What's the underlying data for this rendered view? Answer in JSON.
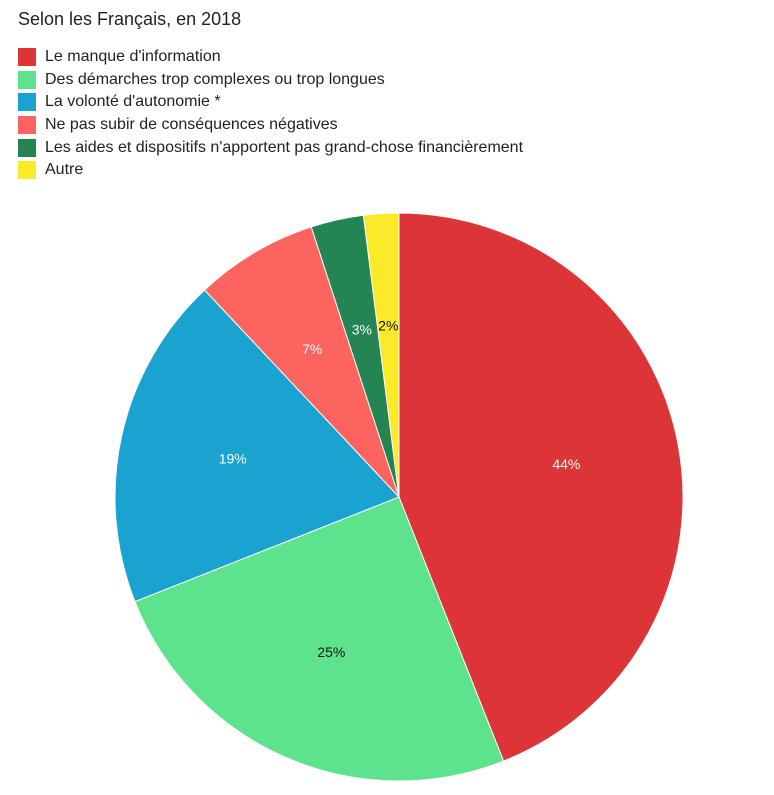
{
  "chart_data": {
    "type": "pie",
    "title": "Selon les Français, en 2018",
    "slices": [
      {
        "label": "Le manque d'information",
        "value": 44,
        "value_label": "44%",
        "color": "#dd3437",
        "label_color": "#ffffff"
      },
      {
        "label": "Des démarches trop complexes ou trop longues",
        "value": 25,
        "value_label": "25%",
        "color": "#5de38e",
        "label_color": "#111111"
      },
      {
        "label": "La volonté d'autonomie *",
        "value": 19,
        "value_label": "19%",
        "color": "#1aa3d0",
        "label_color": "#ffffff"
      },
      {
        "label": "Ne pas subir de conséquences négatives",
        "value": 7,
        "value_label": "7%",
        "color": "#fd645f",
        "label_color": "#ffffff"
      },
      {
        "label": "Les aides et dispositifs n'apportent pas grand-chose financièrement",
        "value": 3,
        "value_label": "3%",
        "color": "#248452",
        "label_color": "#ffffff"
      },
      {
        "label": "Autre",
        "value": 2,
        "value_label": "2%",
        "color": "#faea28",
        "label_color": "#111111"
      }
    ],
    "legend_position": "top-left"
  }
}
